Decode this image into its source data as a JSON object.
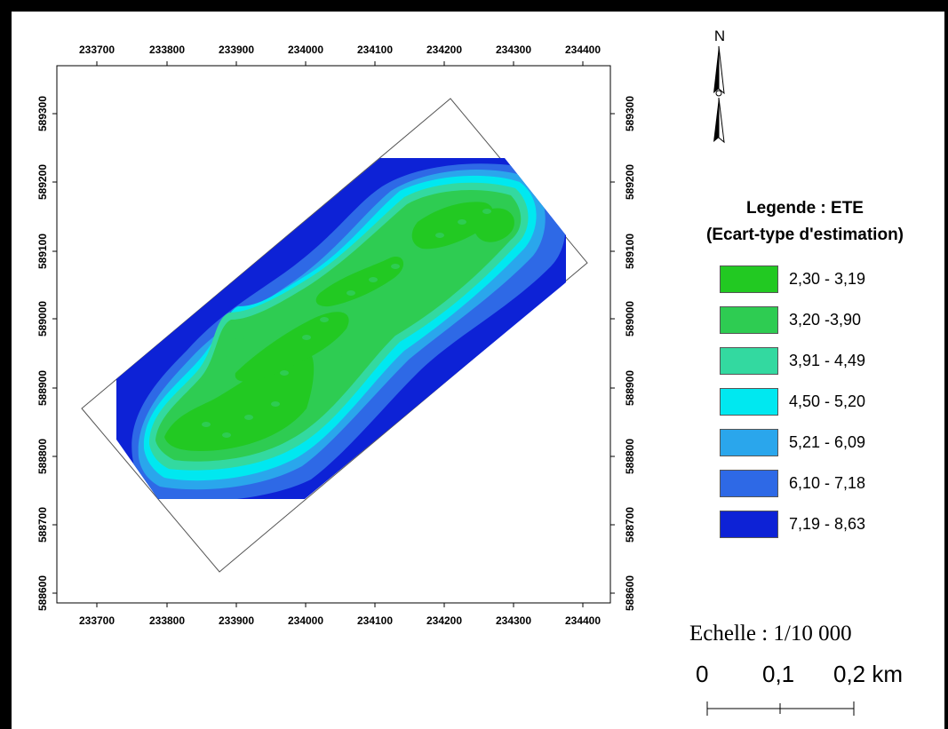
{
  "map": {
    "x_ticks": [
      "233700",
      "233800",
      "233900",
      "234000",
      "234100",
      "234200",
      "234300",
      "234400"
    ],
    "y_ticks": [
      "589300",
      "589200",
      "589100",
      "589000",
      "588900",
      "588800",
      "588700",
      "588600"
    ],
    "north_label": "N"
  },
  "legend": {
    "title_line1": "Legende : ETE",
    "title_line2": "(Ecart-type d'estimation)",
    "items": [
      {
        "label": "2,30 - 3,19",
        "color": "#22c922"
      },
      {
        "label": "3,20 -3,90",
        "color": "#2ecc52"
      },
      {
        "label": "3,91 - 4,49",
        "color": "#33d9a0"
      },
      {
        "label": "4,50 - 5,20",
        "color": "#00e8f0"
      },
      {
        "label": "5,21 - 6,09",
        "color": "#2aa6ec"
      },
      {
        "label": "6,10 - 7,18",
        "color": "#2e69e6"
      },
      {
        "label": "7,19 - 8,63",
        "color": "#0d22d6"
      }
    ]
  },
  "scale": {
    "title": "Echelle : 1/10 000",
    "labels": [
      "0",
      "0,1",
      "0,2 km"
    ]
  }
}
